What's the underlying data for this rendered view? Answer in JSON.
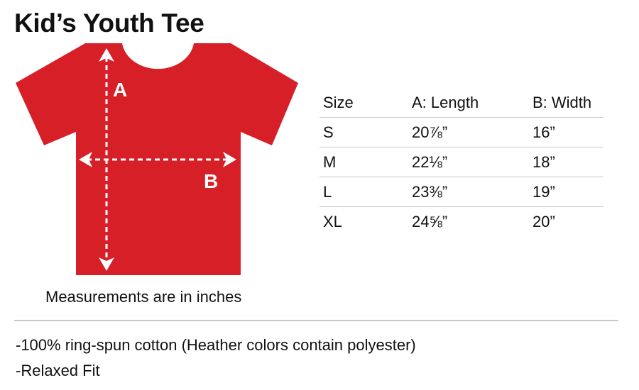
{
  "title": "Kid’s Youth Tee",
  "diagram": {
    "shirt_color": "#d71f27",
    "label_a": "A",
    "label_b": "B"
  },
  "caption": "Measurements are in inches",
  "table": {
    "headers": [
      "Size",
      "A: Length",
      "B: Width"
    ],
    "rows": [
      [
        "S",
        "20⅞”",
        "16”"
      ],
      [
        "M",
        "22⅛”",
        "18”"
      ],
      [
        "L",
        "23⅜”",
        "19”"
      ],
      [
        "XL",
        "24⅝”",
        "20”"
      ]
    ]
  },
  "features": [
    "-100% ring-spun cotton (Heather colors contain polyester)",
    "-Relaxed Fit"
  ]
}
